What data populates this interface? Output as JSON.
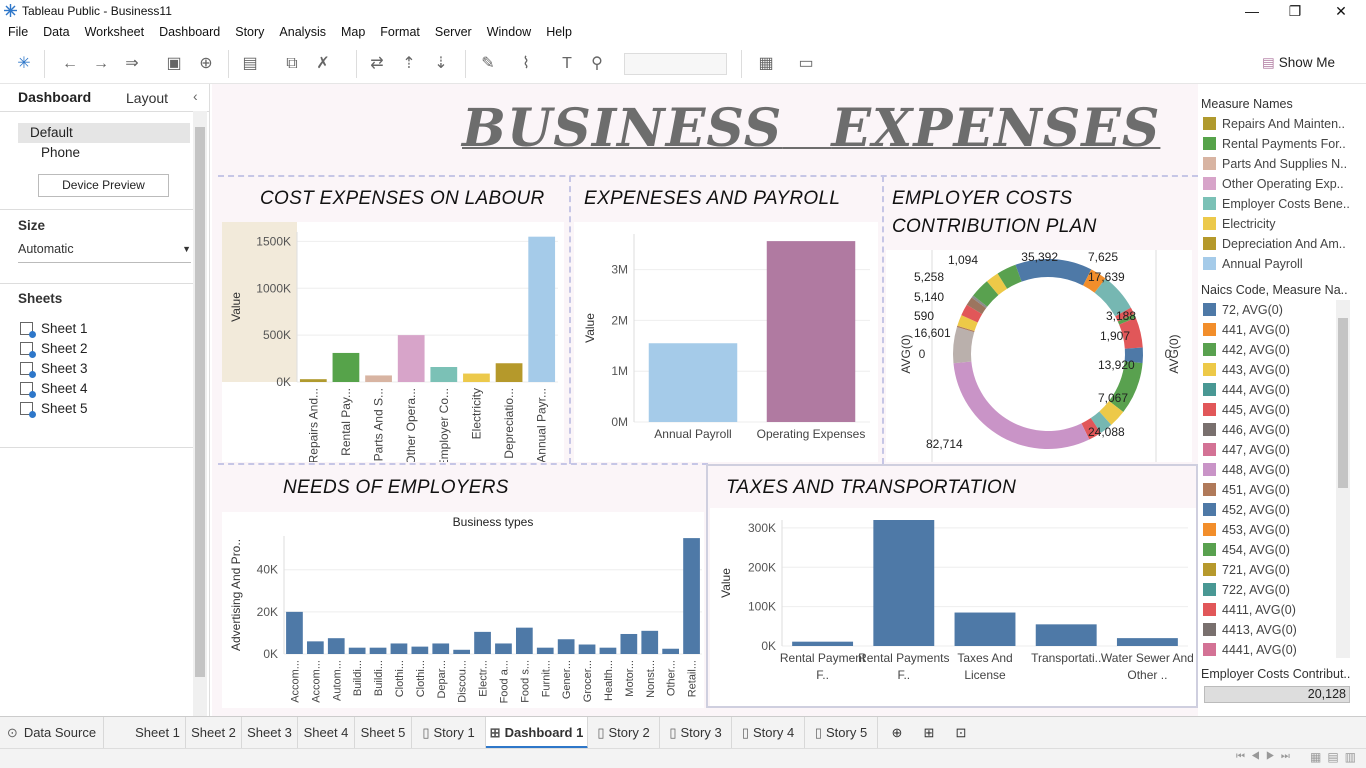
{
  "app": {
    "title": "Tableau Public - Business11"
  },
  "window_controls": {
    "minimize": "—",
    "restore": "❐",
    "close": "✕"
  },
  "menu": [
    "File",
    "Data",
    "Worksheet",
    "Dashboard",
    "Story",
    "Analysis",
    "Map",
    "Format",
    "Server",
    "Window",
    "Help"
  ],
  "toolbar": {
    "show_me": "Show Me"
  },
  "left_panel": {
    "tabs": [
      "Dashboard",
      "Layout"
    ],
    "devices": [
      "Default",
      "Phone"
    ],
    "device_preview_button": "Device Preview",
    "size_label": "Size",
    "size_value": "Automatic",
    "sheets_label": "Sheets",
    "sheets": [
      "Sheet 1",
      "Sheet 2",
      "Sheet 3",
      "Sheet 4",
      "Sheet 5"
    ]
  },
  "dashboard": {
    "title_word1": "BUSINESS",
    "title_word2": "EXPENSES",
    "panels": {
      "labour": "COST EXPENSES ON LABOUR",
      "payroll": "EXPENESES AND PAYROLL",
      "employer_line1": "EMPLOYER COSTS",
      "employer_line2": "CONTRIBUTION PLAN",
      "needs": "NEEDS OF EMPLOYERS",
      "taxes": "TAXES AND TRANSPORTATION"
    }
  },
  "chart_data": [
    {
      "id": "labour",
      "type": "bar",
      "ylabel": "Value",
      "ylim": [
        0,
        1600000
      ],
      "yticks": [
        "0K",
        "500K",
        "1000K",
        "1500K"
      ],
      "categories": [
        "Repairs And...",
        "Rental Pay...",
        "Parts And S...",
        "Other Opera...",
        "Employer Co...",
        "Electricity",
        "Depreciatio...",
        "Annual Payr..."
      ],
      "values": [
        30000,
        310000,
        70000,
        500000,
        160000,
        90000,
        200000,
        1550000
      ],
      "colors": [
        "#b09a2e",
        "#56a34a",
        "#d8b4a2",
        "#d7a4c9",
        "#7bc1b6",
        "#ecc94b",
        "#b5992b",
        "#a5cbe9"
      ]
    },
    {
      "id": "payroll",
      "type": "bar",
      "ylabel": "Value",
      "ylim": [
        0,
        3700000
      ],
      "yticks": [
        "0M",
        "1M",
        "2M",
        "3M"
      ],
      "categories": [
        "Annual Payroll",
        "Operating Expenses"
      ],
      "values": [
        1550000,
        3560000
      ],
      "colors": [
        "#a5cbe9",
        "#b07aa1"
      ]
    },
    {
      "id": "employer",
      "type": "pie",
      "left_axis": "AVG(0)",
      "right_axis": "AVG(0)",
      "zero_left": "0",
      "zero_right": "0",
      "labels": [
        "35,392",
        "7,625",
        "17,639",
        "3,188",
        "1,907",
        "13,920",
        "7,067",
        "24,088",
        "82,714",
        "16,601",
        "590",
        "5,140",
        "5,258",
        "1,094"
      ],
      "slices": [
        {
          "value": 35392,
          "color": "#4e79a7"
        },
        {
          "value": 7625,
          "color": "#f28e2b"
        },
        {
          "value": 17639,
          "color": "#76b7b2"
        },
        {
          "value": 3188,
          "color": "#e15759"
        },
        {
          "value": 1907,
          "color": "#59a14f"
        },
        {
          "value": 13920,
          "color": "#e15759"
        },
        {
          "value": 7067,
          "color": "#4e79a7"
        },
        {
          "value": 24088,
          "color": "#59a14f"
        },
        {
          "value": 8000,
          "color": "#edc948"
        },
        {
          "value": 6000,
          "color": "#76b7b2"
        },
        {
          "value": 6000,
          "color": "#e15759"
        },
        {
          "value": 82714,
          "color": "#c994c7"
        },
        {
          "value": 16601,
          "color": "#bab0ac"
        },
        {
          "value": 590,
          "color": "#b07a5a"
        },
        {
          "value": 5140,
          "color": "#edc948"
        },
        {
          "value": 5258,
          "color": "#e15759"
        },
        {
          "value": 4000,
          "color": "#9c755f"
        },
        {
          "value": 1094,
          "color": "#8c8c8c"
        },
        {
          "value": 9000,
          "color": "#59a14f"
        },
        {
          "value": 6000,
          "color": "#edc948"
        },
        {
          "value": 9000,
          "color": "#59a14f"
        }
      ]
    },
    {
      "id": "needs",
      "type": "bar",
      "title": "Business types",
      "ylabel": "Advertising And Pro..",
      "ylim": [
        0,
        56000
      ],
      "yticks": [
        "0K",
        "20K",
        "40K"
      ],
      "categories": [
        "Accom...",
        "Accom...",
        "Autom...",
        "Buildi...",
        "Buildi...",
        "Clothi...",
        "Clothi...",
        "Depar...",
        "Discou...",
        "Electr...",
        "Food a...",
        "Food s...",
        "Furnit...",
        "Gener...",
        "Grocer...",
        "Health...",
        "Motor...",
        "Nonst...",
        "Other...",
        "Retail..."
      ],
      "values": [
        20000,
        6000,
        7500,
        3000,
        3000,
        5000,
        3500,
        5000,
        2000,
        10500,
        5000,
        12500,
        3000,
        7000,
        4500,
        3000,
        9500,
        11000,
        2500,
        55000
      ],
      "color": "#4e79a7"
    },
    {
      "id": "taxes",
      "type": "bar",
      "ylabel": "Value",
      "ylim": [
        0,
        320000
      ],
      "yticks": [
        "0K",
        "100K",
        "200K",
        "300K"
      ],
      "categories": [
        "Rental Payment F..",
        "Rental Payments F..",
        "Taxes And License",
        "Transportati..",
        "Water Sewer And Other .."
      ],
      "values": [
        11000,
        320000,
        85000,
        55000,
        20000
      ],
      "color": "#4e79a7"
    }
  ],
  "legend": {
    "measure_names_title": "Measure Names",
    "measure_names": [
      {
        "label": "Repairs And Mainten..",
        "color": "#b09a2e"
      },
      {
        "label": "Rental Payments For..",
        "color": "#56a34a"
      },
      {
        "label": "Parts And Supplies N..",
        "color": "#d8b4a2"
      },
      {
        "label": "Other Operating Exp..",
        "color": "#d7a4c9"
      },
      {
        "label": "Employer Costs Bene..",
        "color": "#7bc1b6"
      },
      {
        "label": "Electricity",
        "color": "#ecc94b"
      },
      {
        "label": "Depreciation And Am..",
        "color": "#b5992b"
      },
      {
        "label": "Annual Payroll",
        "color": "#a5cbe9"
      }
    ],
    "naics_title": "Naics Code, Measure Na..",
    "naics": [
      {
        "label": "72, AVG(0)",
        "color": "#4e79a7"
      },
      {
        "label": "441, AVG(0)",
        "color": "#f28e2b"
      },
      {
        "label": "442, AVG(0)",
        "color": "#59a14f"
      },
      {
        "label": "443, AVG(0)",
        "color": "#edc948"
      },
      {
        "label": "444, AVG(0)",
        "color": "#499894"
      },
      {
        "label": "445, AVG(0)",
        "color": "#e15759"
      },
      {
        "label": "446, AVG(0)",
        "color": "#79706e"
      },
      {
        "label": "447, AVG(0)",
        "color": "#d37295"
      },
      {
        "label": "448, AVG(0)",
        "color": "#c994c7"
      },
      {
        "label": "451, AVG(0)",
        "color": "#b07a5a"
      },
      {
        "label": "452, AVG(0)",
        "color": "#4e79a7"
      },
      {
        "label": "453, AVG(0)",
        "color": "#f28e2b"
      },
      {
        "label": "454, AVG(0)",
        "color": "#59a14f"
      },
      {
        "label": "721, AVG(0)",
        "color": "#b6992d"
      },
      {
        "label": "722, AVG(0)",
        "color": "#499894"
      },
      {
        "label": "4411, AVG(0)",
        "color": "#e15759"
      },
      {
        "label": "4413, AVG(0)",
        "color": "#79706e"
      },
      {
        "label": "4441, AVG(0)",
        "color": "#d37295"
      }
    ],
    "employer_costs_title": "Employer Costs Contribut..",
    "employer_costs_value": "20,128"
  },
  "bottom_tabs": [
    "Data Source",
    "Sheet 1",
    "Sheet 2",
    "Sheet 3",
    "Sheet 4",
    "Sheet 5",
    "Story 1",
    "Dashboard 1",
    "Story 2",
    "Story 3",
    "Story 4",
    "Story 5"
  ]
}
